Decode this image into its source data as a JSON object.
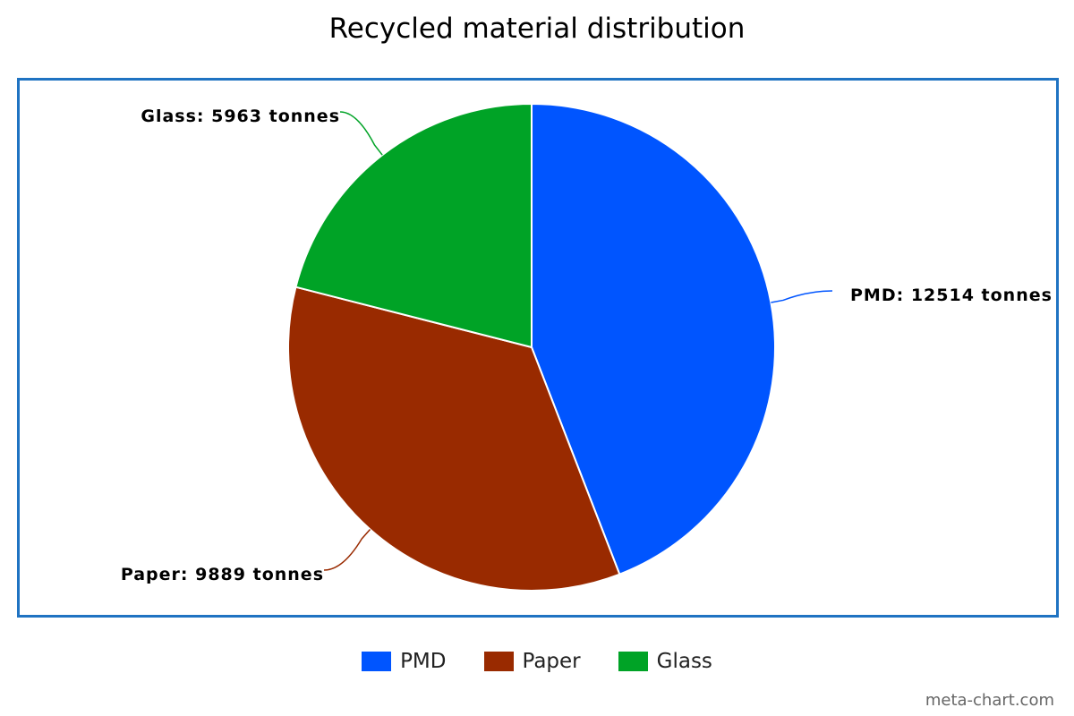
{
  "chart_data": {
    "type": "pie",
    "title": "Recycled material distribution",
    "unit": "tonnes",
    "categories": [
      "PMD",
      "Paper",
      "Glass"
    ],
    "values": [
      12514,
      9889,
      5963
    ],
    "colors": [
      "#0055ff",
      "#992a00",
      "#00a326"
    ],
    "slice_labels": [
      "PMD: 12514 tonnes",
      "Paper: 9889 tonnes",
      "Glass: 5963 tonnes"
    ],
    "legend": {
      "position": "bottom",
      "entries": [
        "PMD",
        "Paper",
        "Glass"
      ]
    },
    "start_angle": "top",
    "direction": "clockwise"
  },
  "watermark": "meta-chart.com"
}
